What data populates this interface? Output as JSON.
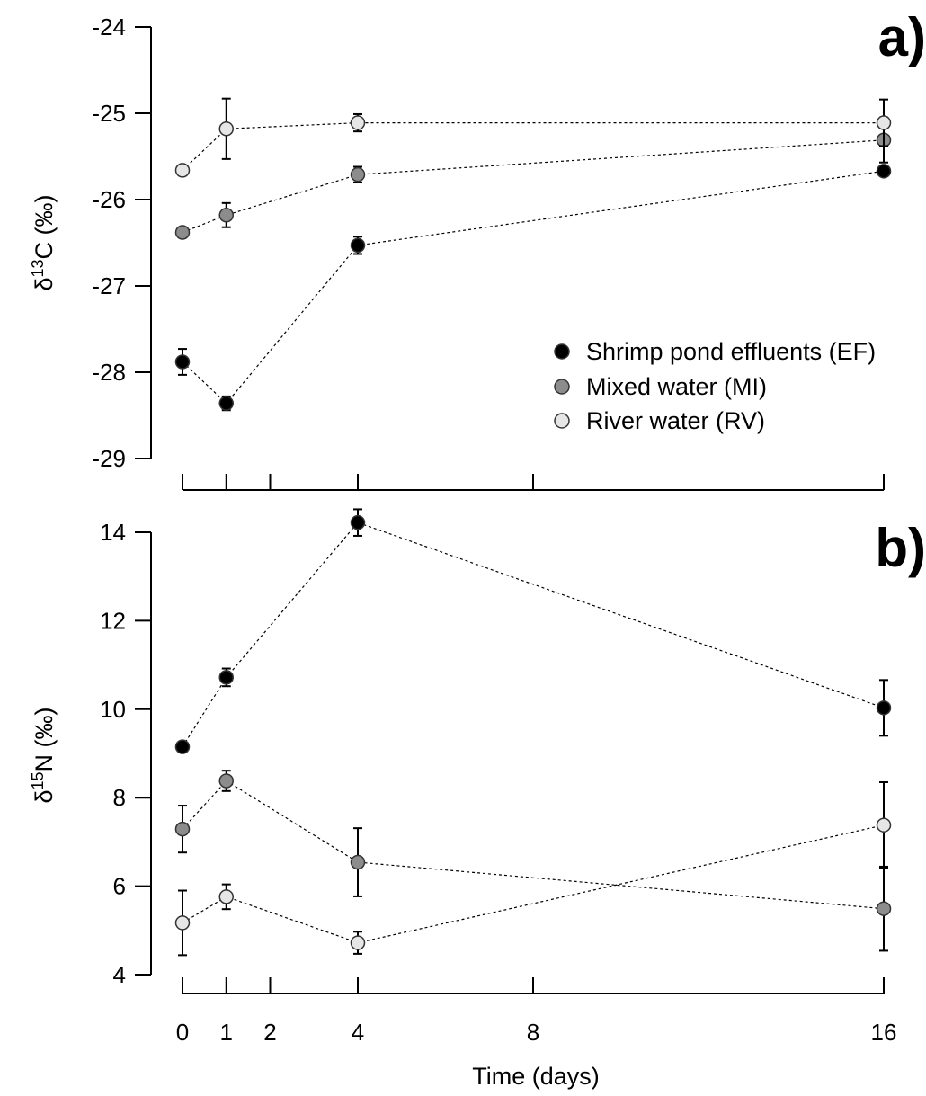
{
  "x_axis": {
    "title": "Time (days)",
    "ticks": [
      0,
      1,
      2,
      4,
      8,
      16
    ],
    "tick_labels": [
      "0",
      "1",
      "2",
      "4",
      "8",
      "16"
    ],
    "xlim": [
      0,
      16
    ]
  },
  "legend": {
    "placement": "right",
    "entries": [
      {
        "label": "Shrimp pond effluents (EF)",
        "color": "#000000"
      },
      {
        "label": "Mixed water (MI)",
        "color": "#8c8c8c"
      },
      {
        "label": "River water (RV)",
        "color": "#e6e6e6"
      }
    ]
  },
  "chart_data": [
    {
      "type": "scatter",
      "panel_label": "a)",
      "ylabel_symbol": "δ",
      "ylabel_sup": "13",
      "ylabel_rest": "C (‰)",
      "ylim": [
        -29,
        -24
      ],
      "yticks": [
        -29,
        -28,
        -27,
        -26,
        -25,
        -24
      ],
      "ytick_labels": [
        "-29",
        "-28",
        "-27",
        "-26",
        "-25",
        "-24"
      ],
      "x": [
        0,
        1,
        4,
        16
      ],
      "lines": "dotted",
      "series": [
        {
          "name": "Shrimp pond effluents (EF)",
          "color": "#000000",
          "values": [
            -27.88,
            -28.36,
            -26.53,
            -25.67
          ],
          "err": [
            0.15,
            0.08,
            0.1,
            0.05
          ]
        },
        {
          "name": "Mixed water (MI)",
          "color": "#8c8c8c",
          "values": [
            -26.38,
            -26.18,
            -25.71,
            -25.31
          ],
          "err": [
            0.0,
            0.14,
            0.09,
            0.26
          ]
        },
        {
          "name": "River water (RV)",
          "color": "#e6e6e6",
          "values": [
            -25.66,
            -25.18,
            -25.11,
            -25.11
          ],
          "err": [
            0.0,
            0.35,
            0.1,
            0.27
          ]
        }
      ]
    },
    {
      "type": "scatter",
      "panel_label": "b)",
      "ylabel_symbol": "δ",
      "ylabel_sup": "15",
      "ylabel_rest": "N (‰)",
      "ylim": [
        4,
        14
      ],
      "yticks": [
        4,
        6,
        8,
        10,
        12,
        14
      ],
      "ytick_labels": [
        "4",
        "6",
        "8",
        "10",
        "12",
        "14"
      ],
      "x": [
        0,
        1,
        4,
        16
      ],
      "lines": "dotted",
      "series": [
        {
          "name": "Shrimp pond effluents (EF)",
          "color": "#000000",
          "values": [
            9.15,
            10.72,
            14.22,
            10.03
          ],
          "err": [
            0.0,
            0.2,
            0.3,
            0.63
          ]
        },
        {
          "name": "Mixed water (MI)",
          "color": "#8c8c8c",
          "values": [
            7.29,
            8.38,
            6.54,
            5.49
          ],
          "err": [
            0.53,
            0.23,
            0.77,
            0.95
          ]
        },
        {
          "name": "River water (RV)",
          "color": "#e6e6e6",
          "values": [
            5.17,
            5.76,
            4.72,
            7.38
          ],
          "err": [
            0.73,
            0.28,
            0.25,
            0.97
          ]
        }
      ]
    }
  ]
}
